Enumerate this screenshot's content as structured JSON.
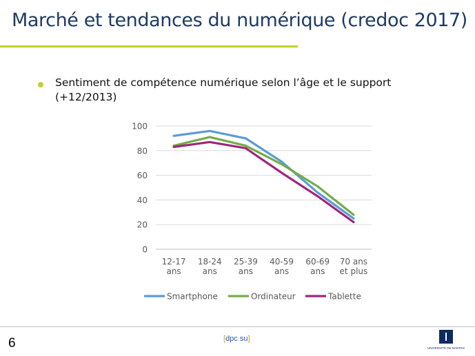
{
  "slide": {
    "title": "Marché et tendances du numérique (credoc 2017)",
    "bullet": "Sentiment de compétence numérique selon l’âge et le support (+12/2013)"
  },
  "footer": {
    "page_number": "6",
    "tag_open": "[",
    "tag_text": "dpc su",
    "tag_close": "]",
    "logo_text": "UNIVERSITÉ DE NANTES"
  },
  "chart_data": {
    "type": "line",
    "categories": [
      "12-17 ans",
      "18-24 ans",
      "25-39 ans",
      "40-59 ans",
      "60-69 ans",
      "70 ans et plus"
    ],
    "category_lines": [
      [
        "12-17",
        "ans"
      ],
      [
        "18-24",
        "ans"
      ],
      [
        "25-39",
        "ans"
      ],
      [
        "40-59",
        "ans"
      ],
      [
        "60-69",
        "ans"
      ],
      [
        "70 ans",
        "et plus"
      ]
    ],
    "series": [
      {
        "name": "Smartphone",
        "color": "#5b9bd5",
        "values": [
          92,
          96,
          90,
          71,
          46,
          25
        ]
      },
      {
        "name": "Ordinateur",
        "color": "#70ad47",
        "values": [
          84,
          91,
          84,
          69,
          51,
          28
        ]
      },
      {
        "name": "Tablette",
        "color": "#a0247d",
        "values": [
          83,
          87,
          82,
          62,
          43,
          22
        ]
      }
    ],
    "ylim": [
      0,
      100
    ],
    "yticks": [
      0,
      20,
      40,
      60,
      80,
      100
    ],
    "grid": true,
    "legend": "bottom",
    "title": "",
    "xlabel": "",
    "ylabel": ""
  }
}
